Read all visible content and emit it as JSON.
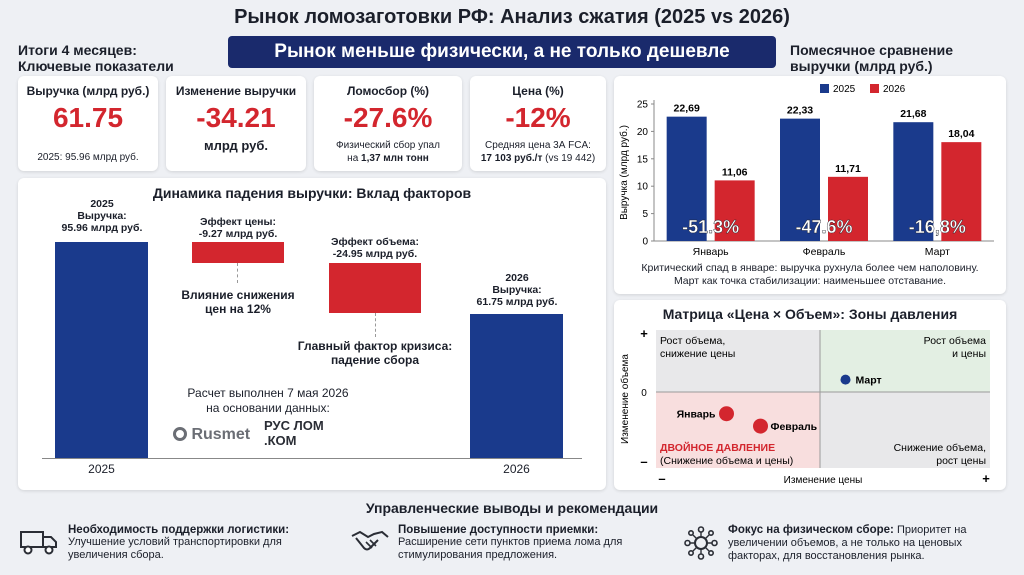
{
  "header": {
    "title": "Рынок ломозаготовки РФ: Анализ сжатия (2025 vs 2026)",
    "banner": "Рынок меньше физически, а не только дешевле",
    "left_heading_1": "Итоги 4 месяцев:",
    "left_heading_2": "Ключевые показатели",
    "right_heading_1": "Помесячное сравнение",
    "right_heading_2": "выручки (млрд руб.)"
  },
  "kpis": [
    {
      "label": "Выручка (млрд руб.)",
      "value": "61.75",
      "sub": "2025: 95.96 млрд руб."
    },
    {
      "label": "Изменение выручки",
      "value": "-34.21",
      "unit": "млрд руб."
    },
    {
      "label": "Ломосбор (%)",
      "value": "-27.6%",
      "sub1": "Физический сбор упал",
      "sub2a": "на ",
      "sub2b": "1,37 млн тонн"
    },
    {
      "label": "Цена (%)",
      "value": "-12%",
      "sub1": "Средняя цена 3А FCA:",
      "sub2a": "17 103 руб./т",
      "sub2b": " (vs 19 442)"
    }
  ],
  "colors": {
    "navy": "#1a3a8c",
    "red": "#d3262e",
    "banner": "#1a2a6c"
  },
  "waterfall": {
    "title": "Динамика падения выручки: Вклад факторов",
    "bar2025_label": [
      "2025",
      "Выручка:",
      "95.96 млрд руб."
    ],
    "bar2026_label": [
      "2026",
      "Выручка:",
      "61.75 млрд руб."
    ],
    "price_label": [
      "Эффект цены:",
      "-9.27 млрд руб."
    ],
    "volume_label": [
      "Эффект объема:",
      "-24.95 млрд руб."
    ],
    "price_note": [
      "Влияние снижения",
      "цен на 12%"
    ],
    "volume_note": [
      "Главный фактор кризиса:",
      "падение сбора"
    ],
    "calc_note": [
      "Расчет выполнен 7 мая 2026",
      "на основании данных:"
    ],
    "sources": [
      "Rusmet",
      "РУС ЛОМ .КОМ"
    ],
    "x_labels": [
      "2025",
      "2026"
    ]
  },
  "chart_data": [
    {
      "type": "bar",
      "title": "",
      "categories": [
        "Январь",
        "Февраль",
        "Март"
      ],
      "series": [
        {
          "name": "2025",
          "values": [
            22.69,
            22.33,
            21.68
          ]
        },
        {
          "name": "2026",
          "values": [
            11.06,
            11.71,
            18.04
          ]
        }
      ],
      "value_labels": {
        "2025": [
          "22,69",
          "22,33",
          "21,68"
        ],
        "2026": [
          "11,06",
          "11,71",
          "18,04"
        ]
      },
      "change_labels": [
        "-51.3%",
        "-47.6%",
        "-16,8%"
      ],
      "ylabel": "Выручка (млрд руб.)",
      "ylim": [
        0,
        25
      ],
      "yticks": [
        0,
        5,
        10,
        15,
        20,
        25
      ],
      "legend_position": "top-right",
      "notes": [
        "Критический спад в январе: выручка рухнула более чем наполовину.",
        "Март как точка стабилизации: наименьшее отставание."
      ]
    },
    {
      "type": "scatter",
      "title": "Матрица «Цена × Объем»: Зоны давления",
      "xlabel": "Изменение цены",
      "ylabel": "Изменение объема",
      "points": [
        {
          "label": "Январь",
          "x": -0.55,
          "y": -0.35
        },
        {
          "label": "Февраль",
          "x": -0.35,
          "y": -0.55
        },
        {
          "label": "Март",
          "x": 0.15,
          "y": 0.2
        }
      ],
      "quadrants": {
        "top_left": [
          "Рост объема,",
          "снижение цены"
        ],
        "top_right": [
          "Рост объема",
          "и цены"
        ],
        "bottom_left": [
          "ДВОЙНОЕ ДАВЛЕНИЕ",
          "(Снижение объема и цены)"
        ],
        "bottom_right": [
          "Снижение объема,",
          "рост цены"
        ]
      },
      "axis_marks": {
        "plus": "+",
        "minus": "–",
        "zero": "0"
      }
    }
  ],
  "recommendations": {
    "title": "Управленческие выводы и рекомендации",
    "items": [
      {
        "icon": "truck-icon",
        "title": "Необходимость поддержки логистики:",
        "text": "Улучшение условий транспортировки для увеличения сбора."
      },
      {
        "icon": "handshake-icon",
        "title": "Повышение доступности приемки:",
        "text": "Расширение сети пунктов приема лома для стимулирования предложения."
      },
      {
        "icon": "network-icon",
        "title": "Фокус на физическом сборе:",
        "text": "Приоритет на увеличении объемов, а не только на ценовых факторах, для восстановления рынка."
      }
    ]
  }
}
